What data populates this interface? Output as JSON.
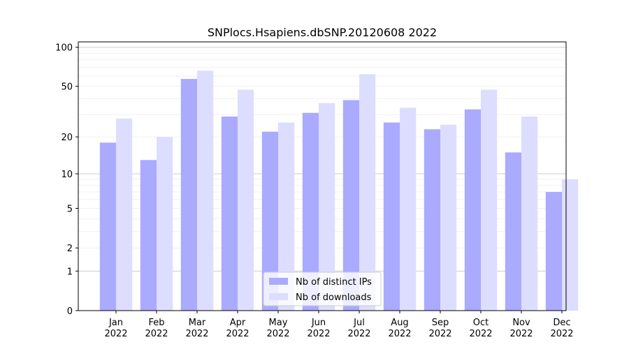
{
  "chart_data": {
    "type": "bar",
    "title": "SNPlocs.Hsapiens.dbSNP.20120608 2022",
    "xlabel": "",
    "ylabel": "",
    "y_scale": "log1p",
    "ylim": [
      0,
      110
    ],
    "y_ticks": [
      0,
      1,
      2,
      5,
      10,
      20,
      50,
      100
    ],
    "grid": "horizontal",
    "legend_position": "bottom-center",
    "categories": [
      [
        "Jan",
        "2022"
      ],
      [
        "Feb",
        "2022"
      ],
      [
        "Mar",
        "2022"
      ],
      [
        "Apr",
        "2022"
      ],
      [
        "May",
        "2022"
      ],
      [
        "Jun",
        "2022"
      ],
      [
        "Jul",
        "2022"
      ],
      [
        "Aug",
        "2022"
      ],
      [
        "Sep",
        "2022"
      ],
      [
        "Oct",
        "2022"
      ],
      [
        "Nov",
        "2022"
      ],
      [
        "Dec",
        "2022"
      ]
    ],
    "series": [
      {
        "name": "Nb of distinct IPs",
        "color": "#aaaaff",
        "values": [
          18,
          13,
          57,
          29,
          22,
          31,
          39,
          26,
          23,
          33,
          15,
          7
        ]
      },
      {
        "name": "Nb of downloads",
        "color": "#ddddff",
        "values": [
          28,
          20,
          66,
          47,
          26,
          37,
          62,
          34,
          25,
          47,
          29,
          9
        ]
      }
    ]
  }
}
